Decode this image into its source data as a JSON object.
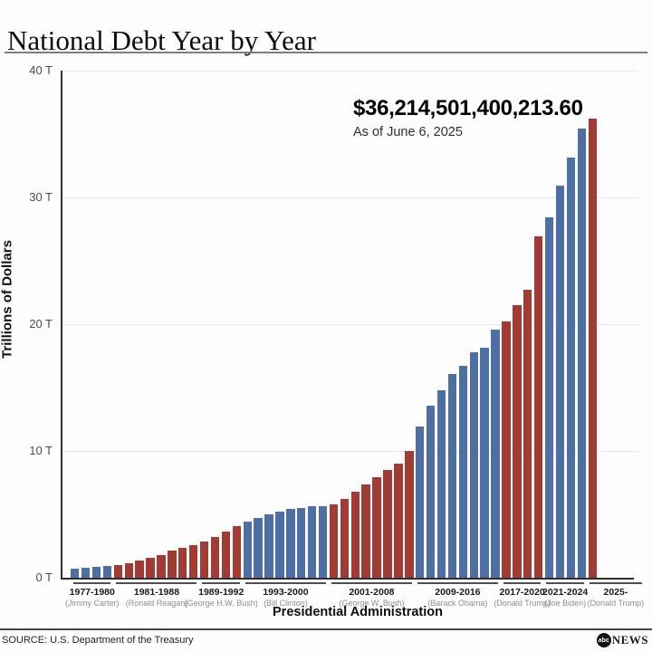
{
  "header": {
    "title": "National Debt Year by Year"
  },
  "annotation": {
    "amount": "$36,214,501,400,213.60",
    "as_of": "As of June 6, 2025"
  },
  "chart_data": {
    "type": "bar",
    "title": "National Debt Year by Year",
    "xlabel": "Presidential Administration",
    "ylabel": "Trillions of Dollars",
    "ylim": [
      0,
      40
    ],
    "grid": "horizontal",
    "yticks": [
      {
        "value": 0,
        "label": "0 T"
      },
      {
        "value": 10,
        "label": "10 T"
      },
      {
        "value": 20,
        "label": "20 T"
      },
      {
        "value": 30,
        "label": "30 T"
      },
      {
        "value": 40,
        "label": "40 T"
      }
    ],
    "unit": "trillions of US dollars",
    "colors": {
      "democrat": "#4e6fa4",
      "republican": "#a33b35"
    },
    "groups": [
      {
        "years": "1977-1980",
        "president": "(Jimmy Carter)",
        "party": "democrat",
        "start_year": 1977,
        "values": [
          0.7,
          0.77,
          0.83,
          0.91
        ],
        "label_flex": 4
      },
      {
        "years": "1981-1988",
        "president": "(Ronald Reagan)",
        "party": "republican",
        "start_year": 1981,
        "values": [
          1.0,
          1.14,
          1.38,
          1.57,
          1.82,
          2.13,
          2.35,
          2.6
        ],
        "label_flex": 8
      },
      {
        "years": "1989-1992",
        "president": "(George H.W. Bush)",
        "party": "republican",
        "start_year": 1989,
        "values": [
          2.86,
          3.23,
          3.67,
          4.06
        ],
        "label_flex": 4
      },
      {
        "years": "1993-2000",
        "president": "(Bill Clinton)",
        "party": "democrat",
        "start_year": 1993,
        "values": [
          4.41,
          4.69,
          4.97,
          5.22,
          5.41,
          5.53,
          5.66,
          5.67
        ],
        "label_flex": 8
      },
      {
        "years": "2001-2008",
        "president": "(George W. Bush)",
        "party": "republican",
        "start_year": 2001,
        "values": [
          5.81,
          6.23,
          6.78,
          7.38,
          7.93,
          8.51,
          9.01,
          10.02
        ],
        "label_flex": 8
      },
      {
        "years": "2009-2016",
        "president": "(Barack Obama)",
        "party": "democrat",
        "start_year": 2009,
        "values": [
          11.91,
          13.56,
          14.79,
          16.07,
          16.74,
          17.82,
          18.15,
          19.57
        ],
        "label_flex": 8
      },
      {
        "years": "2017-2020",
        "president": "(Donald Trump)",
        "party": "republican",
        "start_year": 2017,
        "values": [
          20.24,
          21.52,
          22.72,
          26.95
        ],
        "label_flex": 4
      },
      {
        "years": "2021-2024",
        "president": "(Joe Biden)",
        "party": "democrat",
        "start_year": 2021,
        "values": [
          28.43,
          30.93,
          33.17,
          35.46
        ],
        "label_flex": 4
      },
      {
        "years": "2025-",
        "president": "(Donald Trump)",
        "party": "republican",
        "start_year": 2025,
        "values": [
          36.21
        ],
        "label_flex": 5.4
      }
    ]
  },
  "footer": {
    "source": "SOURCE: U.S. Department of the Treasury",
    "logo_abc": "abc",
    "logo_news": "NEWS"
  }
}
